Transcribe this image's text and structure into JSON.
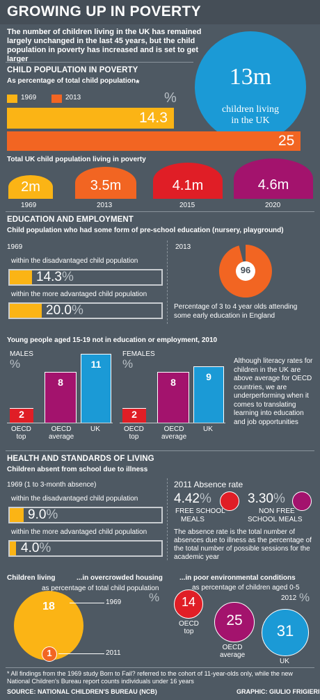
{
  "header": {
    "title": "GROWING UP IN POVERTY",
    "intro": "The number of children living in the UK has remained largely unchanged in the last 45 years, but the child population in poverty has increased and is set to get larger"
  },
  "colors": {
    "yellow": "#fbb415",
    "orange": "#f26522",
    "red": "#e01e26",
    "purple": "#a3136d",
    "blue": "#1b9ad6",
    "dark": "#454e57",
    "bg": "#4e5963"
  },
  "population": {
    "title": "CHILD POPULATION IN POVERTY",
    "subtitle": "As percentage of total child population",
    "asterisk": "*",
    "pct": "%",
    "legend_1969": "1969",
    "legend_2013": "2013",
    "bar_1969": "14.3",
    "bar_2013": "25",
    "big_value": "13m",
    "big_caption_1": "children living",
    "big_caption_2": "in the UK",
    "total_title": "Total UK child population living in poverty",
    "domes": [
      {
        "value": "2m",
        "year": "1969"
      },
      {
        "value": "3.5m",
        "year": "2013"
      },
      {
        "value": "4.1m",
        "year": "2015"
      },
      {
        "value": "4.6m",
        "year": "2020"
      }
    ]
  },
  "education": {
    "title": "EDUCATION AND EMPLOYMENT",
    "subtitle": "Child population who had some form of pre-school education (nursery, playground)",
    "year_1969": "1969",
    "year_2013": "2013",
    "disadv_label": "within the disadvantaged child population",
    "disadv_value": "14.3",
    "adv_label": "within the more advantaged child population",
    "adv_value": "20.0",
    "pct": "%",
    "pie_value": "96",
    "pie_caption_1": "Percentage of 3 to 4 year olds attending",
    "pie_caption_2": "some early education in England",
    "neet_title": "Young people aged 15-19 not in education or employment, 2010",
    "males": "MALES",
    "females": "FEMALES",
    "males_values": [
      "2",
      "8",
      "11"
    ],
    "females_values": [
      "2",
      "8",
      "9"
    ],
    "labels": [
      "OECD|top",
      "OECD|average",
      "UK"
    ],
    "note": "Although literacy rates for children in the UK are above average for OECD countries, we are underperforming when it comes to translating learning into education and job opportunities"
  },
  "health": {
    "title": "HEALTH AND STANDARDS OF LIVING",
    "subtitle": "Children absent from school due to illness",
    "year_label": "1969 (1 to 3-month absence)",
    "disadv_label": "within the disadvantaged child population",
    "disadv_value": "9.0",
    "adv_label": "within the more advantaged child population",
    "adv_value": "4.0",
    "pct": "%",
    "absence_title": "2011 Absence rate",
    "fsm_value": "4.42",
    "fsm_label_1": "FREE SCHOOL",
    "fsm_label_2": "MEALS",
    "nfsm_value": "3.30",
    "nfsm_label_1": "NON FREE",
    "nfsm_label_2": "SCHOOL MEALS",
    "absence_note": "The absence rate is the total number of absences due to illness as the percentage of the total number of possible sessions for the academic year",
    "living_title": "Children living",
    "overcrowded_title": "...in overcrowded housing",
    "overcrowded_sub": "as percentage of total child population",
    "over_1969": "18",
    "over_2011": "1",
    "year_1969": "1969",
    "year_2011": "2011",
    "env_title": "...in poor environmental conditions",
    "env_sub": "as percentage of children aged 0-5",
    "env_year": "2012",
    "env_values": [
      "14",
      "25",
      "31"
    ],
    "env_labels": [
      "OECD|top",
      "OECD|average",
      "UK"
    ]
  },
  "footer": {
    "note": "* All findings from the 1969 study Born to Fail? referred to the cohort of 11-year-olds only, while the new National Children's Bureau report counts individuals under 16 years",
    "source": "SOURCE: NATIONAL CHILDREN'S BUREAU (NCB)",
    "credit": "GRAPHIC: GIULIO FRIGIERI"
  }
}
